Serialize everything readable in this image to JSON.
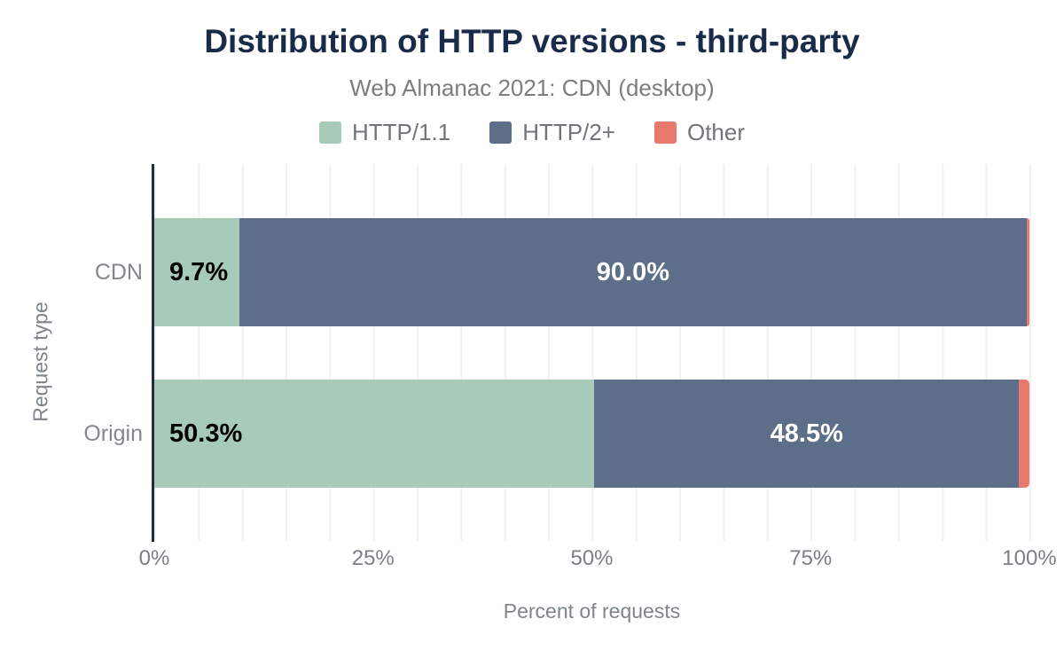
{
  "chart_data": {
    "type": "bar",
    "orientation": "horizontal",
    "stacked": true,
    "title": "Distribution of HTTP versions - third-party",
    "subtitle": "Web Almanac 2021: CDN (desktop)",
    "xlabel": "Percent of requests",
    "ylabel": "Request type",
    "categories": [
      "CDN",
      "Origin"
    ],
    "series": [
      {
        "name": "HTTP/1.1",
        "color": "#a8cab8",
        "label_color": "#000000",
        "label_align": "left",
        "values": [
          9.7,
          50.3
        ],
        "labels": [
          "9.7%",
          "50.3%"
        ]
      },
      {
        "name": "HTTP/2+",
        "color": "#5d6f88",
        "label_color": "#ffffff",
        "label_align": "center",
        "values": [
          90.0,
          48.5
        ],
        "labels": [
          "90.0%",
          "48.5%"
        ]
      },
      {
        "name": "Other",
        "color": "#e7796d",
        "label_color": "#000000",
        "label_align": "none",
        "values": [
          0.3,
          1.2
        ],
        "labels": [
          "",
          ""
        ]
      }
    ],
    "x_ticks": [
      "0%",
      "25%",
      "50%",
      "75%",
      "100%"
    ],
    "xlim": [
      0,
      100
    ],
    "legend_position": "top",
    "grid": "vertical, minor lines every 5%",
    "colors": {
      "title": "#1a2b49",
      "subtitle": "#7d7d7d",
      "axis_text": "#7e858a",
      "axis_line": "#232d3a",
      "gridline": "#f1f1f3",
      "background": "#ffffff"
    }
  }
}
